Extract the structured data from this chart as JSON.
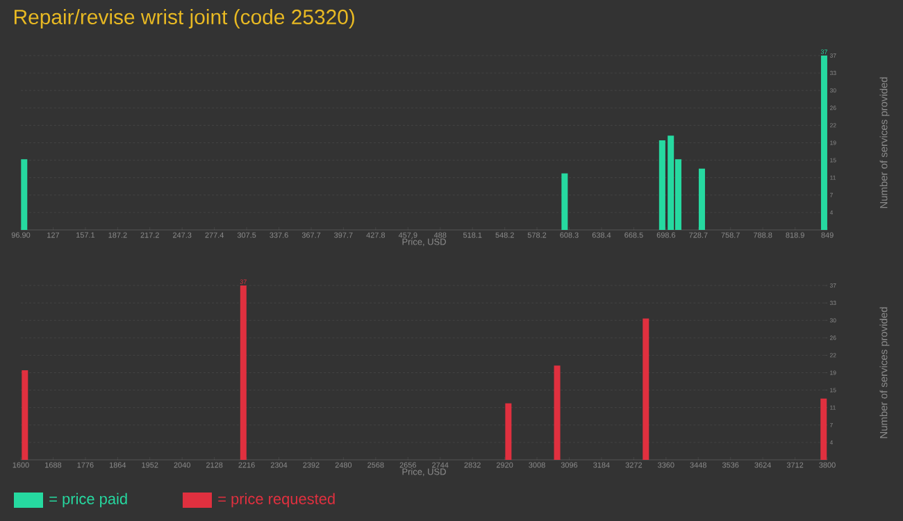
{
  "chart_data": [
    {
      "type": "bar",
      "title": "Repair/revise wrist joint (code 25320)",
      "xlabel": "Price, USD",
      "ylabel": "Number of services provided",
      "x": [
        100,
        604,
        695,
        703,
        710,
        732,
        846
      ],
      "series": [
        {
          "name": "= price paid",
          "color": "#26d9a0",
          "values": [
            15,
            12,
            19,
            20,
            15,
            13,
            37
          ],
          "value_labels": [
            null,
            null,
            null,
            null,
            null,
            null,
            "37"
          ]
        }
      ],
      "xlim": [
        96.9,
        849
      ],
      "ylim": [
        0,
        37
      ],
      "xticks": [
        {
          "value": 96.9,
          "label": "96.90"
        },
        127,
        157.1,
        187.2,
        217.2,
        247.3,
        277.4,
        307.5,
        337.6,
        367.7,
        397.7,
        427.8,
        457.9,
        488,
        518.1,
        548.2,
        578.2,
        608.3,
        638.4,
        668.5,
        698.6,
        728.7,
        758.7,
        788.8,
        818.9,
        849
      ],
      "yticks": [
        {
          "value": 3.7,
          "label": "4"
        },
        {
          "value": 7.4,
          "label": "7"
        },
        {
          "value": 11.1,
          "label": "11"
        },
        {
          "value": 14.8,
          "label": "15"
        },
        {
          "value": 18.5,
          "label": "19"
        },
        {
          "value": 22.2,
          "label": "22"
        },
        {
          "value": 25.9,
          "label": "26"
        },
        {
          "value": 29.6,
          "label": "30"
        },
        {
          "value": 33.3,
          "label": "33"
        },
        37
      ],
      "grid": "y",
      "legend": "bottom left"
    },
    {
      "type": "bar",
      "xlabel": "Price, USD",
      "ylabel": "Number of services provided",
      "x": [
        1611,
        2207,
        2930,
        3063,
        3305,
        3790
      ],
      "series": [
        {
          "name": "= price requested",
          "color": "#e0303f",
          "values": [
            19,
            37,
            12,
            20,
            30,
            13
          ],
          "value_labels": [
            null,
            "37",
            null,
            null,
            null,
            null
          ]
        }
      ],
      "xlim": [
        1600,
        3800
      ],
      "ylim": [
        0,
        37
      ],
      "xticks": [
        1600,
        1688,
        1776,
        1864,
        1952,
        2040,
        2128,
        2216,
        2304,
        2392,
        2480,
        2568,
        2656,
        2744,
        2832,
        2920,
        3008,
        3096,
        3184,
        3272,
        3360,
        3448,
        3536,
        3624,
        3712,
        3800
      ],
      "yticks": [
        {
          "value": 3.7,
          "label": "4"
        },
        {
          "value": 7.4,
          "label": "7"
        },
        {
          "value": 11.1,
          "label": "11"
        },
        {
          "value": 14.8,
          "label": "15"
        },
        {
          "value": 18.5,
          "label": "19"
        },
        {
          "value": 22.2,
          "label": "22"
        },
        {
          "value": 25.9,
          "label": "26"
        },
        {
          "value": 29.6,
          "label": "30"
        },
        {
          "value": 33.3,
          "label": "33"
        },
        37
      ],
      "grid": "y",
      "legend": "bottom left"
    }
  ]
}
